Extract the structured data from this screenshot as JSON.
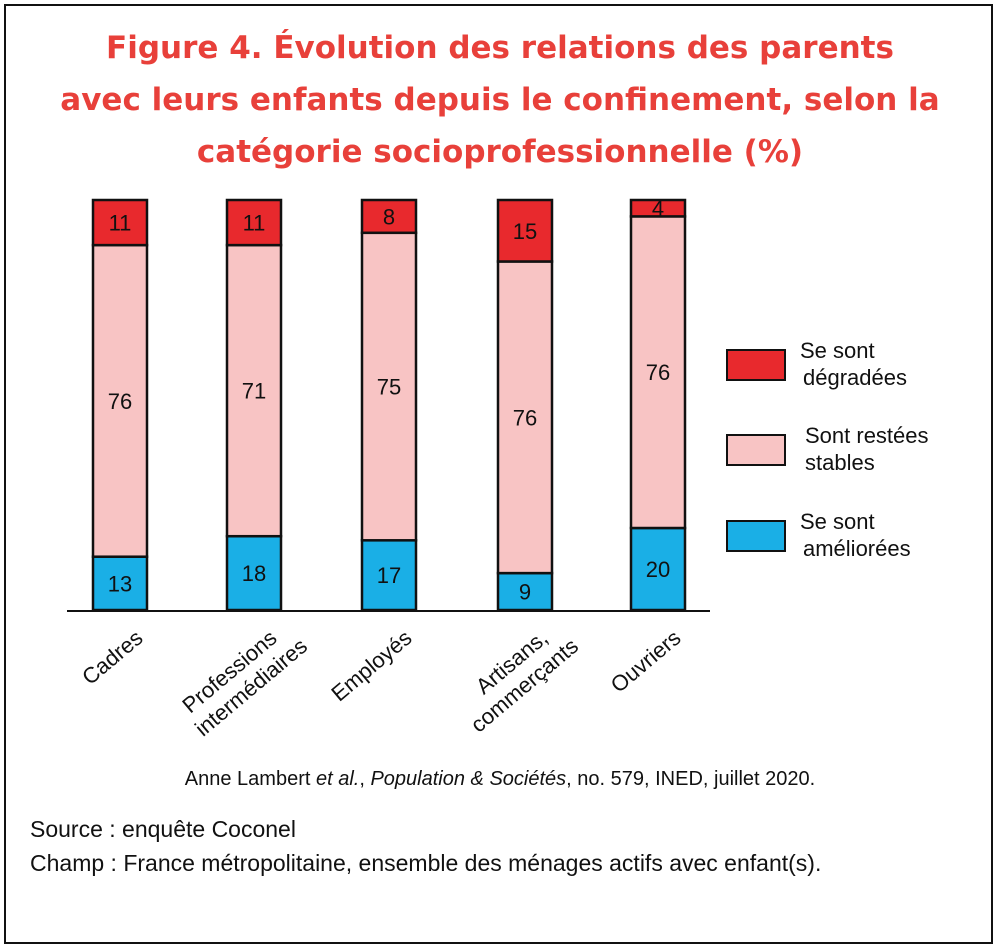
{
  "chart_data": {
    "type": "stacked-bar",
    "title": [
      "Figure 4. Évolution des relations des parents",
      "avec leurs enfants depuis le confinement, selon la",
      "catégorie socioprofessionnelle (%)"
    ],
    "categories": [
      [
        "Cadres"
      ],
      [
        "Professions",
        "intermédiaires"
      ],
      [
        "Employés"
      ],
      [
        "Artisans,",
        "commerçants"
      ],
      [
        "Ouvriers"
      ]
    ],
    "series": [
      {
        "name": "Se sont améliorées",
        "legend": [
          "Se sont",
          "améliorées"
        ],
        "color": "#1aafe6",
        "values": [
          13,
          18,
          17,
          9,
          20
        ]
      },
      {
        "name": "Sont restées stables",
        "legend": [
          "Sont restées",
          "stables"
        ],
        "color": "#f8c4c4",
        "values": [
          76,
          71,
          75,
          76,
          76
        ]
      },
      {
        "name": "Se sont dégradées",
        "legend": [
          "Se sont",
          "dégradées"
        ],
        "color": "#e8292d",
        "values": [
          11,
          11,
          8,
          15,
          4
        ]
      }
    ],
    "ylim": [
      0,
      100
    ],
    "grid": false,
    "legend_position": "right"
  },
  "credit": {
    "author": "Anne Lambert ",
    "etal": "et al.",
    "sep": ", ",
    "journal": "Population & Sociétés",
    "rest": ", no. 579, INED, juillet 2020."
  },
  "source": "Source : enquête Coconel",
  "scope": "Champ : France métropolitaine, ensemble des ménages actifs avec enfant(s)."
}
